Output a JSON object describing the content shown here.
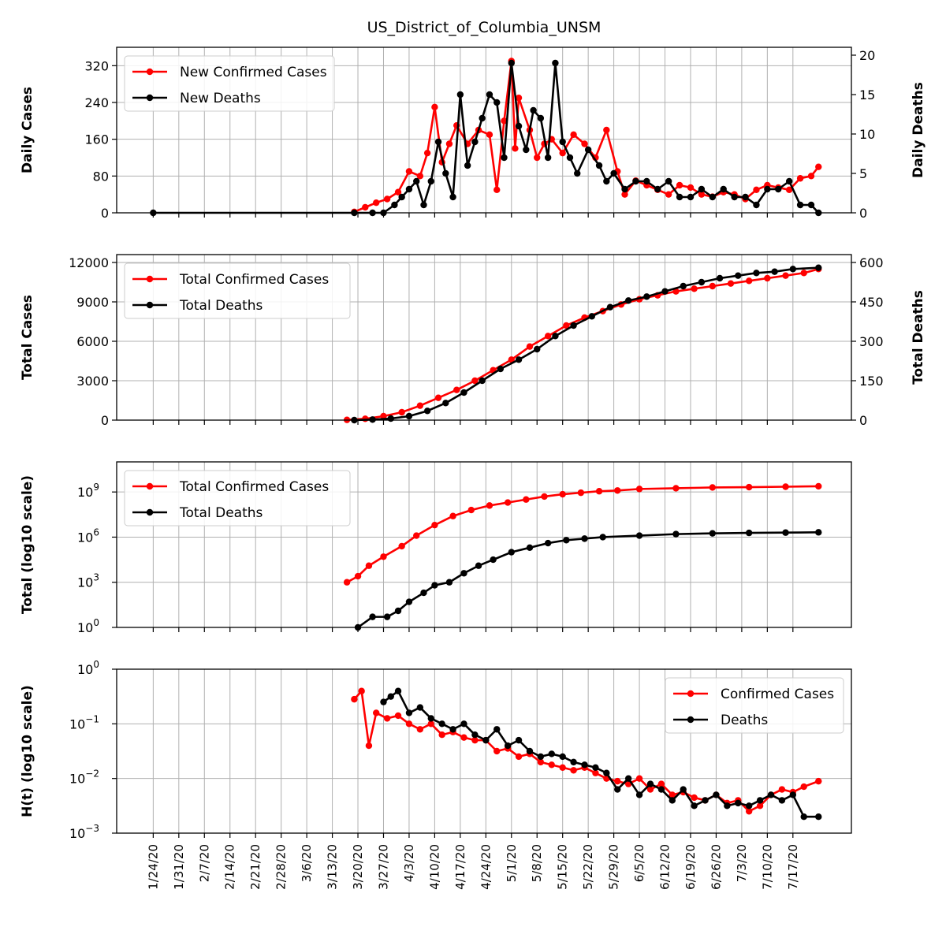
{
  "chart_data": [
    {
      "type": "line",
      "title": "US_District_of_Columbia_UNSM",
      "ylabel": "Daily Cases",
      "y2label": "Daily Deaths",
      "ylim": [
        0,
        360
      ],
      "y2lim": [
        0,
        21
      ],
      "yticks": [
        "0",
        "80",
        "160",
        "240",
        "320"
      ],
      "y2ticks": [
        "0",
        "5",
        "10",
        "15",
        "20"
      ],
      "legend_position": "upper-left",
      "legend": [
        "New Confirmed Cases",
        "New Deaths"
      ],
      "series": [
        {
          "name": "New Confirmed Cases",
          "color": "#ff0000",
          "axis": "left",
          "x": [
            "3/19/20",
            "3/22/20",
            "3/25/20",
            "3/28/20",
            "3/31/20",
            "4/3/20",
            "4/6/20",
            "4/8/20",
            "4/10/20",
            "4/12/20",
            "4/14/20",
            "4/16/20",
            "4/19/20",
            "4/22/20",
            "4/25/20",
            "4/27/20",
            "4/29/20",
            "5/1/20",
            "5/2/20",
            "5/3/20",
            "5/6/20",
            "5/8/20",
            "5/10/20",
            "5/12/20",
            "5/15/20",
            "5/18/20",
            "5/21/20",
            "5/24/20",
            "5/27/20",
            "5/30/20",
            "6/1/20",
            "6/4/20",
            "6/7/20",
            "6/10/20",
            "6/13/20",
            "6/16/20",
            "6/19/20",
            "6/22/20",
            "6/25/20",
            "6/28/20",
            "7/1/20",
            "7/4/20",
            "7/7/20",
            "7/10/20",
            "7/13/20",
            "7/16/20",
            "7/19/20",
            "7/22/20",
            "7/24/20"
          ],
          "values": [
            2,
            12,
            22,
            30,
            45,
            90,
            80,
            130,
            230,
            110,
            150,
            190,
            150,
            180,
            170,
            50,
            200,
            330,
            140,
            250,
            180,
            120,
            150,
            160,
            130,
            170,
            150,
            120,
            180,
            90,
            40,
            70,
            60,
            50,
            40,
            60,
            55,
            40,
            35,
            45,
            40,
            30,
            50,
            60,
            55,
            50,
            75,
            80,
            100
          ]
        },
        {
          "name": "New Deaths",
          "color": "#000000",
          "axis": "right",
          "x": [
            "1/24/20",
            "3/19/20",
            "3/24/20",
            "3/27/20",
            "3/30/20",
            "4/1/20",
            "4/3/20",
            "4/5/20",
            "4/7/20",
            "4/9/20",
            "4/11/20",
            "4/13/20",
            "4/15/20",
            "4/17/20",
            "4/19/20",
            "4/21/20",
            "4/23/20",
            "4/25/20",
            "4/27/20",
            "4/29/20",
            "5/1/20",
            "5/3/20",
            "5/5/20",
            "5/7/20",
            "5/9/20",
            "5/11/20",
            "5/13/20",
            "5/15/20",
            "5/17/20",
            "5/19/20",
            "5/22/20",
            "5/25/20",
            "5/27/20",
            "5/29/20",
            "6/1/20",
            "6/4/20",
            "6/7/20",
            "6/10/20",
            "6/13/20",
            "6/16/20",
            "6/19/20",
            "6/22/20",
            "6/25/20",
            "6/28/20",
            "7/1/20",
            "7/4/20",
            "7/7/20",
            "7/10/20",
            "7/13/20",
            "7/16/20",
            "7/19/20",
            "7/22/20",
            "7/24/20"
          ],
          "values": [
            0,
            0,
            0,
            0,
            1,
            2,
            3,
            4,
            1,
            4,
            9,
            5,
            2,
            15,
            6,
            9,
            12,
            15,
            14,
            7,
            19,
            11,
            8,
            13,
            12,
            7,
            19,
            9,
            7,
            5,
            8,
            6,
            4,
            5,
            3,
            4,
            4,
            3,
            4,
            2,
            2,
            3,
            2,
            3,
            2,
            2,
            1,
            3,
            3,
            4,
            1,
            1,
            0
          ]
        }
      ]
    },
    {
      "type": "line",
      "ylabel": "Total Cases",
      "y2label": "Total Deaths",
      "ylim": [
        0,
        12600
      ],
      "y2lim": [
        0,
        630
      ],
      "yticks": [
        "0",
        "3000",
        "6000",
        "9000",
        "12000"
      ],
      "y2ticks": [
        "0",
        "150",
        "300",
        "450",
        "600"
      ],
      "legend_position": "upper-left",
      "legend": [
        "Total Confirmed Cases",
        "Total Deaths"
      ],
      "series": [
        {
          "name": "Total Confirmed Cases",
          "color": "#ff0000",
          "axis": "left",
          "x": [
            "3/17/20",
            "3/22/20",
            "3/27/20",
            "4/1/20",
            "4/6/20",
            "4/11/20",
            "4/16/20",
            "4/21/20",
            "4/26/20",
            "5/1/20",
            "5/6/20",
            "5/11/20",
            "5/16/20",
            "5/21/20",
            "5/26/20",
            "5/31/20",
            "6/5/20",
            "6/10/20",
            "6/15/20",
            "6/20/20",
            "6/25/20",
            "6/30/20",
            "7/5/20",
            "7/10/20",
            "7/15/20",
            "7/20/20",
            "7/24/20"
          ],
          "values": [
            20,
            100,
            300,
            600,
            1100,
            1700,
            2300,
            3000,
            3800,
            4600,
            5600,
            6400,
            7200,
            7800,
            8300,
            8800,
            9200,
            9500,
            9800,
            10000,
            10200,
            10400,
            10600,
            10800,
            11000,
            11200,
            11500
          ]
        },
        {
          "name": "Total Deaths",
          "color": "#000000",
          "axis": "right",
          "x": [
            "3/19/20",
            "3/24/20",
            "3/29/20",
            "4/3/20",
            "4/8/20",
            "4/13/20",
            "4/18/20",
            "4/23/20",
            "4/28/20",
            "5/3/20",
            "5/8/20",
            "5/13/20",
            "5/18/20",
            "5/23/20",
            "5/28/20",
            "6/2/20",
            "6/7/20",
            "6/12/20",
            "6/17/20",
            "6/22/20",
            "6/27/20",
            "7/2/20",
            "7/7/20",
            "7/12/20",
            "7/17/20",
            "7/24/20"
          ],
          "values": [
            0,
            2,
            6,
            15,
            35,
            65,
            105,
            150,
            195,
            230,
            270,
            320,
            360,
            395,
            430,
            455,
            470,
            490,
            510,
            525,
            540,
            550,
            560,
            565,
            575,
            580
          ]
        }
      ]
    },
    {
      "type": "line",
      "ylabel": "Total (log10 scale)",
      "yscale": "log",
      "ylim_exp": [
        0,
        11
      ],
      "yticks": [
        "10^0",
        "10^3",
        "10^6",
        "10^9"
      ],
      "legend_position": "upper-left",
      "legend": [
        "Total Confirmed Cases",
        "Total Deaths"
      ],
      "series": [
        {
          "name": "Total Confirmed Cases",
          "color": "#ff0000",
          "x": [
            "3/17/20",
            "3/20/20",
            "3/23/20",
            "3/27/20",
            "4/1/20",
            "4/5/20",
            "4/10/20",
            "4/15/20",
            "4/20/20",
            "4/25/20",
            "4/30/20",
            "5/5/20",
            "5/10/20",
            "5/15/20",
            "5/20/20",
            "5/25/20",
            "5/30/20",
            "6/5/20",
            "6/15/20",
            "6/25/20",
            "7/5/20",
            "7/15/20",
            "7/24/20"
          ],
          "log10_values": [
            3.0,
            3.4,
            4.1,
            4.7,
            5.4,
            6.1,
            6.8,
            7.4,
            7.8,
            8.1,
            8.3,
            8.5,
            8.7,
            8.85,
            8.95,
            9.05,
            9.1,
            9.2,
            9.25,
            9.3,
            9.32,
            9.35,
            9.38
          ]
        },
        {
          "name": "Total Deaths",
          "color": "#000000",
          "x": [
            "3/20/20",
            "3/24/20",
            "3/28/20",
            "3/31/20",
            "4/3/20",
            "4/7/20",
            "4/10/20",
            "4/14/20",
            "4/18/20",
            "4/22/20",
            "4/26/20",
            "5/1/20",
            "5/6/20",
            "5/11/20",
            "5/16/20",
            "5/21/20",
            "5/26/20",
            "6/5/20",
            "6/15/20",
            "6/25/20",
            "7/5/20",
            "7/15/20",
            "7/24/20"
          ],
          "log10_values": [
            0.0,
            0.7,
            0.7,
            1.1,
            1.7,
            2.3,
            2.8,
            3.0,
            3.6,
            4.1,
            4.5,
            5.0,
            5.3,
            5.6,
            5.8,
            5.9,
            6.0,
            6.1,
            6.2,
            6.25,
            6.28,
            6.3,
            6.32
          ]
        }
      ]
    },
    {
      "type": "line",
      "ylabel": "H(t) (log10 scale)",
      "yscale": "log",
      "ylim_exp": [
        -3,
        0
      ],
      "yticks": [
        "10^-3",
        "10^-2",
        "10^-1",
        "10^0"
      ],
      "legend_position": "upper-right",
      "legend": [
        "Confirmed Cases",
        "Deaths"
      ],
      "series": [
        {
          "name": "Confirmed Cases",
          "color": "#ff0000",
          "x": [
            "3/19/20",
            "3/21/20",
            "3/23/20",
            "3/25/20",
            "3/28/20",
            "3/31/20",
            "4/3/20",
            "4/6/20",
            "4/9/20",
            "4/12/20",
            "4/15/20",
            "4/18/20",
            "4/21/20",
            "4/24/20",
            "4/27/20",
            "4/30/20",
            "5/3/20",
            "5/6/20",
            "5/9/20",
            "5/12/20",
            "5/15/20",
            "5/18/20",
            "5/21/20",
            "5/24/20",
            "5/27/20",
            "5/30/20",
            "6/2/20",
            "6/5/20",
            "6/8/20",
            "6/11/20",
            "6/14/20",
            "6/17/20",
            "6/20/20",
            "6/23/20",
            "6/26/20",
            "6/29/20",
            "7/2/20",
            "7/5/20",
            "7/8/20",
            "7/11/20",
            "7/14/20",
            "7/17/20",
            "7/20/20",
            "7/24/20"
          ],
          "log10_values": [
            -0.55,
            -0.4,
            -1.4,
            -0.8,
            -0.9,
            -0.85,
            -1.0,
            -1.1,
            -1.0,
            -1.2,
            -1.15,
            -1.25,
            -1.3,
            -1.3,
            -1.5,
            -1.45,
            -1.6,
            -1.55,
            -1.7,
            -1.75,
            -1.8,
            -1.85,
            -1.8,
            -1.9,
            -2.0,
            -2.05,
            -2.1,
            -2.0,
            -2.2,
            -2.1,
            -2.3,
            -2.25,
            -2.35,
            -2.4,
            -2.3,
            -2.45,
            -2.4,
            -2.6,
            -2.5,
            -2.3,
            -2.2,
            -2.25,
            -2.15,
            -2.05
          ]
        },
        {
          "name": "Deaths",
          "color": "#000000",
          "x": [
            "3/27/20",
            "3/29/20",
            "3/31/20",
            "4/3/20",
            "4/6/20",
            "4/9/20",
            "4/12/20",
            "4/15/20",
            "4/18/20",
            "4/21/20",
            "4/24/20",
            "4/27/20",
            "4/30/20",
            "5/3/20",
            "5/6/20",
            "5/9/20",
            "5/12/20",
            "5/15/20",
            "5/18/20",
            "5/21/20",
            "5/24/20",
            "5/27/20",
            "5/30/20",
            "6/2/20",
            "6/5/20",
            "6/8/20",
            "6/11/20",
            "6/14/20",
            "6/17/20",
            "6/20/20",
            "6/23/20",
            "6/26/20",
            "6/29/20",
            "7/2/20",
            "7/5/20",
            "7/8/20",
            "7/11/20",
            "7/14/20",
            "7/17/20",
            "7/20/20",
            "7/24/20"
          ],
          "log10_values": [
            -0.6,
            -0.5,
            -0.4,
            -0.8,
            -0.7,
            -0.9,
            -1.0,
            -1.1,
            -1.0,
            -1.2,
            -1.3,
            -1.1,
            -1.4,
            -1.3,
            -1.5,
            -1.6,
            -1.55,
            -1.6,
            -1.7,
            -1.75,
            -1.8,
            -1.9,
            -2.2,
            -2.0,
            -2.3,
            -2.1,
            -2.2,
            -2.4,
            -2.2,
            -2.5,
            -2.4,
            -2.3,
            -2.5,
            -2.45,
            -2.5,
            -2.4,
            -2.3,
            -2.4,
            -2.3,
            -2.7,
            -2.7
          ]
        }
      ]
    }
  ],
  "xticks": [
    "1/24/20",
    "1/31/20",
    "2/7/20",
    "2/14/20",
    "2/21/20",
    "2/28/20",
    "3/6/20",
    "3/13/20",
    "3/20/20",
    "3/27/20",
    "4/3/20",
    "4/10/20",
    "4/17/20",
    "4/24/20",
    "5/1/20",
    "5/8/20",
    "5/15/20",
    "5/22/20",
    "5/29/20",
    "6/5/20",
    "6/12/20",
    "6/19/20",
    "6/26/20",
    "7/3/20",
    "7/10/20",
    "7/17/20"
  ],
  "xtick_labels": [
    "1/24/20",
    "1/31/20",
    "2/7/20",
    "2/14/20",
    "2/21/20",
    "2/28/20",
    "3/6/20",
    "3/13/20",
    "3/20/20",
    "3/27/20",
    "4/3/20",
    "4/10/20",
    "4/17/20",
    "4/24/20",
    "5/1/20",
    "5/8/20",
    "5/15/20",
    "5/22/20",
    "5/29/20",
    "6/5/20",
    "6/12/20",
    "6/19/20",
    "6/26/20",
    "7/3/20",
    "7/10/20",
    "7/17/20"
  ],
  "xrange": [
    "1/14/20",
    "8/2/20"
  ],
  "grid": true
}
